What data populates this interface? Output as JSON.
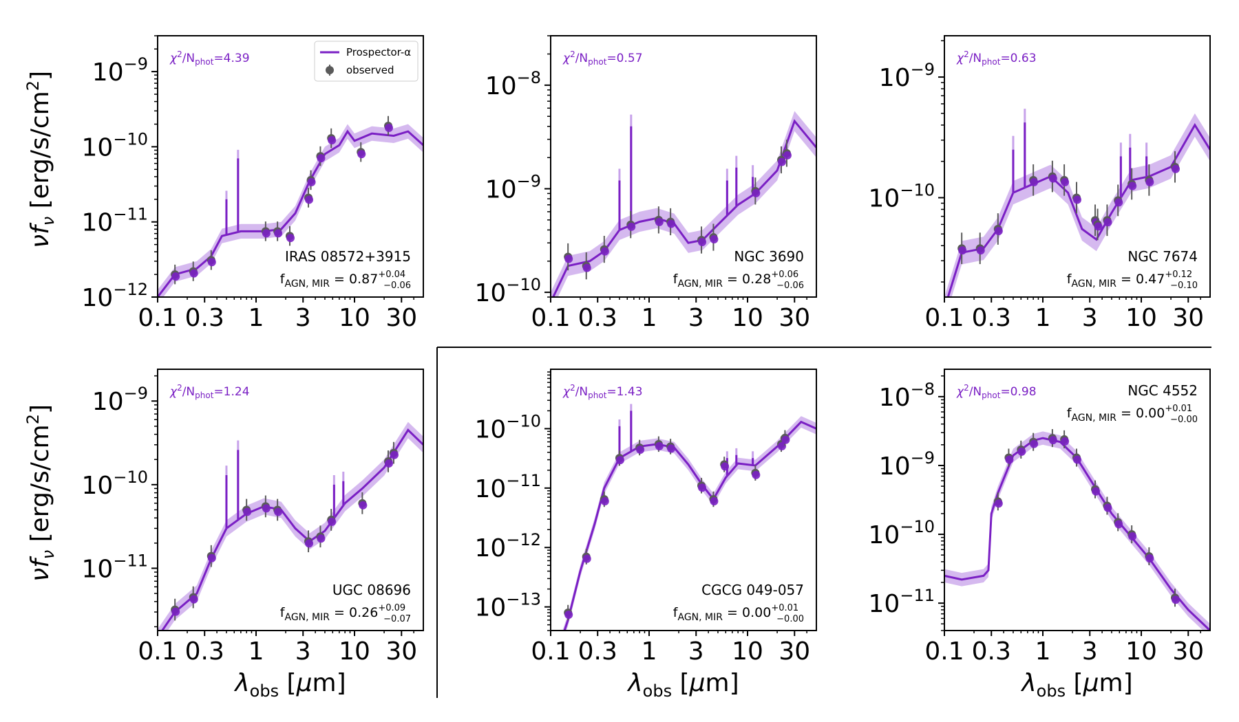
{
  "figure": {
    "ylabel": "νf_ν [erg/s/cm²]",
    "xlabel": "λ_obs [μm]",
    "legend": {
      "model": "Prospector-α",
      "observed": "observed"
    },
    "colors": {
      "model": "#7a1fc4",
      "band": "#c7a2ea",
      "observed": "#5a5a5a"
    }
  },
  "chart_data": [
    {
      "type": "line",
      "name": "IRAS 08572+3915",
      "chi2": "4.39",
      "fagn": "0.87",
      "fagn_up": "+0.04",
      "fagn_lo": "−0.06",
      "xscale": "log",
      "xlim": [
        0.1,
        50
      ],
      "yscale": "log",
      "ylim": [
        1e-12,
        3e-09
      ],
      "xticks": [
        0.1,
        0.3,
        1,
        3,
        10,
        30
      ],
      "yticks": [
        -12,
        -11,
        -10,
        -9
      ],
      "model": [
        [
          0.1,
          1e-12
        ],
        [
          0.15,
          2e-12
        ],
        [
          0.25,
          2.4e-12
        ],
        [
          0.35,
          3.5e-12
        ],
        [
          0.45,
          6.5e-12
        ],
        [
          0.7,
          7.5e-12
        ],
        [
          1.2,
          7.5e-12
        ],
        [
          1.8,
          8e-12
        ],
        [
          2.5,
          1.3e-11
        ],
        [
          3.5,
          3.5e-11
        ],
        [
          5,
          8e-11
        ],
        [
          7,
          1.05e-10
        ],
        [
          8.5,
          1.6e-10
        ],
        [
          10,
          1.2e-10
        ],
        [
          15,
          1.5e-10
        ],
        [
          25,
          1.4e-10
        ],
        [
          35,
          1.6e-10
        ],
        [
          50,
          1.05e-10
        ]
      ],
      "lines": [
        [
          0.656,
          7e-11
        ],
        [
          0.5,
          2e-11
        ]
      ],
      "observed": [
        [
          0.15,
          2e-12
        ],
        [
          0.23,
          2.2e-12
        ],
        [
          0.35,
          3.1e-12
        ],
        [
          1.25,
          7.5e-12
        ],
        [
          1.65,
          7.5e-12
        ],
        [
          2.2,
          6.5e-12
        ],
        [
          3.4,
          2.1e-11
        ],
        [
          3.6,
          3.6e-11
        ],
        [
          4.5,
          7.5e-11
        ],
        [
          5.8,
          1.3e-10
        ],
        [
          11.6,
          8.5e-11
        ],
        [
          22,
          1.9e-10
        ]
      ]
    },
    {
      "type": "line",
      "name": "NGC 3690",
      "chi2": "0.57",
      "fagn": "0.28",
      "fagn_up": "+0.06",
      "fagn_lo": "−0.06",
      "xscale": "log",
      "xlim": [
        0.1,
        50
      ],
      "yscale": "log",
      "ylim": [
        9e-11,
        3e-08
      ],
      "xticks": [
        0.1,
        0.3,
        1,
        3,
        10,
        30
      ],
      "yticks": [
        -10,
        -9,
        -8
      ],
      "model": [
        [
          0.1,
          8e-11
        ],
        [
          0.15,
          1.8e-10
        ],
        [
          0.25,
          2e-10
        ],
        [
          0.35,
          2.5e-10
        ],
        [
          0.5,
          4e-10
        ],
        [
          0.8,
          4.8e-10
        ],
        [
          1.2,
          5.2e-10
        ],
        [
          1.8,
          4.6e-10
        ],
        [
          2.5,
          3e-10
        ],
        [
          3.5,
          3.2e-10
        ],
        [
          5,
          4.5e-10
        ],
        [
          8,
          7e-10
        ],
        [
          12,
          9e-10
        ],
        [
          20,
          1.5e-09
        ],
        [
          30,
          4.5e-09
        ],
        [
          50,
          2.5e-09
        ]
      ],
      "lines": [
        [
          0.656,
          4e-09
        ],
        [
          0.5,
          1.2e-09
        ],
        [
          6.2,
          1.2e-09
        ],
        [
          7.7,
          1.6e-09
        ],
        [
          11.3,
          1.3e-09
        ]
      ],
      "observed": [
        [
          0.15,
          2.2e-10
        ],
        [
          0.23,
          1.8e-10
        ],
        [
          0.35,
          2.6e-10
        ],
        [
          0.65,
          4.5e-10
        ],
        [
          1.25,
          5e-10
        ],
        [
          1.65,
          4.8e-10
        ],
        [
          3.4,
          3.2e-10
        ],
        [
          4.5,
          3.4e-10
        ],
        [
          12,
          9.5e-10
        ],
        [
          22,
          1.9e-09
        ],
        [
          25,
          2.2e-09
        ]
      ]
    },
    {
      "type": "line",
      "name": "NGC 7674",
      "chi2": "0.63",
      "fagn": "0.47",
      "fagn_up": "+0.12",
      "fagn_lo": "−0.10",
      "xscale": "log",
      "xlim": [
        0.1,
        50
      ],
      "yscale": "log",
      "ylim": [
        1.5e-11,
        2.2e-09
      ],
      "xticks": [
        0.1,
        0.3,
        1,
        3,
        10,
        30
      ],
      "yticks": [
        -10,
        -9
      ],
      "model": [
        [
          0.1,
          1.2e-11
        ],
        [
          0.15,
          3.5e-11
        ],
        [
          0.25,
          3.8e-11
        ],
        [
          0.35,
          5.5e-11
        ],
        [
          0.5,
          1.1e-10
        ],
        [
          0.8,
          1.3e-10
        ],
        [
          1.2,
          1.5e-10
        ],
        [
          1.8,
          1.1e-10
        ],
        [
          2.5,
          5.5e-11
        ],
        [
          3.5,
          4.5e-11
        ],
        [
          5,
          7.5e-11
        ],
        [
          8,
          1.4e-10
        ],
        [
          12,
          1.5e-10
        ],
        [
          20,
          1.8e-10
        ],
        [
          35,
          4e-10
        ],
        [
          50,
          2.5e-10
        ]
      ],
      "lines": [
        [
          0.656,
          4.2e-10
        ],
        [
          0.5,
          2.5e-10
        ],
        [
          6.2,
          2.2e-10
        ],
        [
          7.7,
          2.6e-10
        ],
        [
          11.3,
          2.2e-10
        ]
      ],
      "observed": [
        [
          0.15,
          3.8e-11
        ],
        [
          0.23,
          3.8e-11
        ],
        [
          0.35,
          5.5e-11
        ],
        [
          0.8,
          1.4e-10
        ],
        [
          1.25,
          1.5e-10
        ],
        [
          1.65,
          1.4e-10
        ],
        [
          2.2,
          1e-10
        ],
        [
          3.4,
          6.5e-11
        ],
        [
          3.6,
          6e-11
        ],
        [
          4.5,
          6.5e-11
        ],
        [
          5.8,
          9.5e-11
        ],
        [
          8,
          1.3e-10
        ],
        [
          12,
          1.4e-10
        ],
        [
          22,
          1.8e-10
        ]
      ]
    },
    {
      "type": "line",
      "name": "UGC 08696",
      "chi2": "1.24",
      "fagn": "0.26",
      "fagn_up": "+0.09",
      "fagn_lo": "−0.07",
      "xscale": "log",
      "xlim": [
        0.1,
        50
      ],
      "yscale": "log",
      "ylim": [
        1.8e-12,
        2.4e-09
      ],
      "xticks": [
        0.1,
        0.3,
        1,
        3,
        10,
        30
      ],
      "yticks": [
        -11,
        -10,
        -9
      ],
      "model": [
        [
          0.1,
          1.5e-12
        ],
        [
          0.15,
          3e-12
        ],
        [
          0.25,
          5e-12
        ],
        [
          0.35,
          1.3e-11
        ],
        [
          0.5,
          3e-11
        ],
        [
          0.8,
          4.5e-11
        ],
        [
          1.2,
          5.5e-11
        ],
        [
          1.8,
          5e-11
        ],
        [
          2.5,
          3e-11
        ],
        [
          3.5,
          2.1e-11
        ],
        [
          5,
          2.8e-11
        ],
        [
          8,
          6e-11
        ],
        [
          12,
          9e-11
        ],
        [
          20,
          1.6e-10
        ],
        [
          35,
          4.5e-10
        ],
        [
          50,
          3e-10
        ]
      ],
      "lines": [
        [
          0.656,
          2.6e-10
        ],
        [
          0.5,
          1.3e-10
        ],
        [
          6.2,
          1e-10
        ],
        [
          7.7,
          1.1e-10
        ]
      ],
      "observed": [
        [
          0.15,
          3.2e-12
        ],
        [
          0.23,
          4.5e-12
        ],
        [
          0.35,
          1.4e-11
        ],
        [
          0.8,
          5e-11
        ],
        [
          1.25,
          5.5e-11
        ],
        [
          1.65,
          5e-11
        ],
        [
          3.4,
          2.1e-11
        ],
        [
          4.5,
          2.4e-11
        ],
        [
          5.8,
          3.8e-11
        ],
        [
          12,
          6e-11
        ],
        [
          22,
          1.9e-10
        ],
        [
          25,
          2.4e-10
        ]
      ]
    },
    {
      "type": "line",
      "name": "CGCG 049-057",
      "chi2": "1.43",
      "fagn": "0.00",
      "fagn_up": "+0.01",
      "fagn_lo": "−0.00",
      "xscale": "log",
      "xlim": [
        0.1,
        50
      ],
      "yscale": "log",
      "ylim": [
        4e-14,
        1e-09
      ],
      "xticks": [
        0.1,
        0.3,
        1,
        3,
        10,
        30
      ],
      "yticks": [
        -13,
        -12,
        -11,
        -10
      ],
      "model": [
        [
          0.12,
          2e-14
        ],
        [
          0.15,
          6e-14
        ],
        [
          0.2,
          4e-13
        ],
        [
          0.28,
          2.5e-12
        ],
        [
          0.35,
          1e-11
        ],
        [
          0.5,
          3.2e-11
        ],
        [
          0.8,
          5e-11
        ],
        [
          1.2,
          5.5e-11
        ],
        [
          1.8,
          4.8e-11
        ],
        [
          2.5,
          2.5e-11
        ],
        [
          3.5,
          1.1e-11
        ],
        [
          4.5,
          6.5e-12
        ],
        [
          6,
          1.5e-11
        ],
        [
          8,
          2.6e-11
        ],
        [
          12,
          2.4e-11
        ],
        [
          20,
          5e-11
        ],
        [
          35,
          1.3e-10
        ],
        [
          50,
          1e-10
        ]
      ],
      "lines": [
        [
          0.656,
          2e-10
        ],
        [
          0.5,
          1.1e-10
        ],
        [
          6.2,
          3.2e-11
        ],
        [
          7.7,
          3.6e-11
        ],
        [
          11.3,
          3.2e-11
        ]
      ],
      "observed": [
        [
          0.15,
          8e-14
        ],
        [
          0.23,
          7e-13
        ],
        [
          0.35,
          6.5e-12
        ],
        [
          0.5,
          3.2e-11
        ],
        [
          0.8,
          4.8e-11
        ],
        [
          1.25,
          5.5e-11
        ],
        [
          1.65,
          5e-11
        ],
        [
          3.4,
          1.1e-11
        ],
        [
          4.5,
          6.5e-12
        ],
        [
          5.8,
          2.5e-11
        ],
        [
          12,
          1.8e-11
        ],
        [
          22,
          5.5e-11
        ],
        [
          24,
          7e-11
        ]
      ]
    },
    {
      "type": "line",
      "name": "NGC 4552",
      "chi2": "0.98",
      "fagn": "0.00",
      "fagn_up": "+0.01",
      "fagn_lo": "−0.00",
      "xscale": "log",
      "xlim": [
        0.1,
        50
      ],
      "yscale": "log",
      "ylim": [
        4e-12,
        2.5e-08
      ],
      "xticks": [
        0.1,
        0.3,
        1,
        3,
        10,
        30
      ],
      "yticks": [
        -11,
        -10,
        -9,
        -8
      ],
      "model": [
        [
          0.1,
          2.5e-11
        ],
        [
          0.15,
          2.2e-11
        ],
        [
          0.25,
          2.5e-11
        ],
        [
          0.28,
          3e-11
        ],
        [
          0.3,
          2e-10
        ],
        [
          0.35,
          4e-10
        ],
        [
          0.5,
          1.4e-09
        ],
        [
          0.8,
          2.3e-09
        ],
        [
          1.0,
          2.5e-09
        ],
        [
          1.5,
          2.2e-09
        ],
        [
          2.2,
          1.3e-09
        ],
        [
          3.5,
          4.5e-10
        ],
        [
          5,
          2e-10
        ],
        [
          8,
          9e-11
        ],
        [
          12,
          4.5e-11
        ],
        [
          20,
          1.6e-11
        ],
        [
          30,
          8e-12
        ],
        [
          50,
          4e-12
        ]
      ],
      "lines": [],
      "observed": [
        [
          0.35,
          3e-10
        ],
        [
          0.45,
          1.3e-09
        ],
        [
          0.6,
          1.7e-09
        ],
        [
          0.8,
          2.2e-09
        ],
        [
          1.25,
          2.5e-09
        ],
        [
          1.65,
          2.4e-09
        ],
        [
          2.2,
          1.3e-09
        ],
        [
          3.4,
          4.5e-10
        ],
        [
          4.5,
          2.6e-10
        ],
        [
          5.8,
          1.5e-10
        ],
        [
          8,
          1e-10
        ],
        [
          12,
          4.8e-11
        ],
        [
          22,
          1.2e-11
        ]
      ]
    }
  ]
}
